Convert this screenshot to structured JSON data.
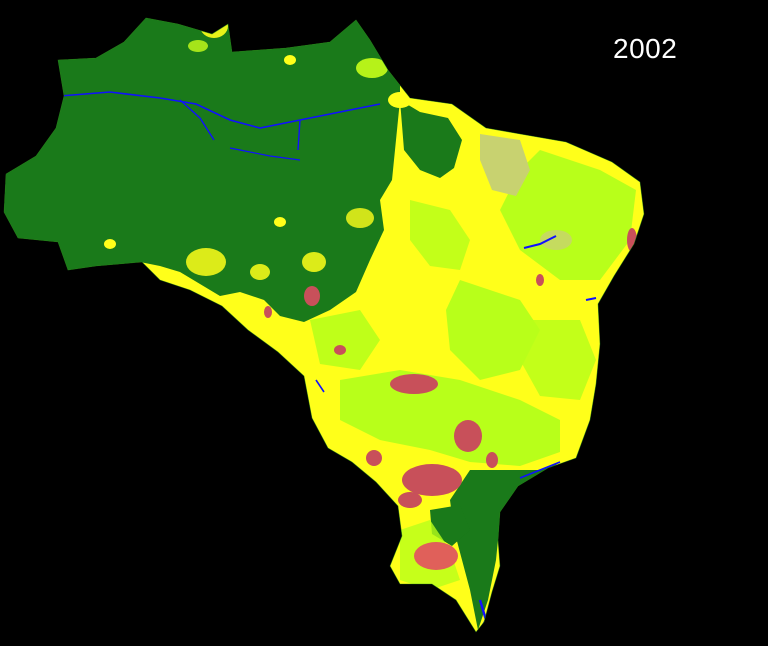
{
  "map": {
    "year": "2002",
    "background_color": "#000000",
    "land_cover_colors": {
      "forest": "#1a7a1a",
      "savanna": "#ffff1a",
      "grassland": "#b8ff1a",
      "agriculture": "#c8505a",
      "mixed": "#c8d270",
      "water": "#1010ff"
    }
  }
}
